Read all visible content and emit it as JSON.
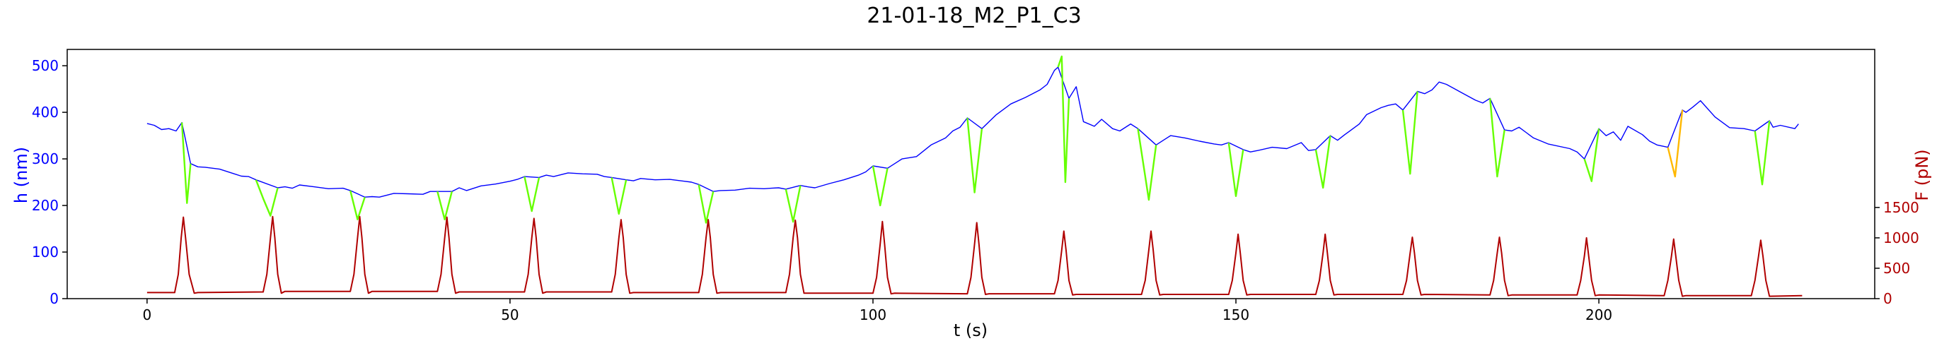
{
  "chart_data": {
    "type": "line",
    "title": "21-01-18_M2_P1_C3",
    "xlabel": "t (s)",
    "ylabel": "h (nm)",
    "y2label": "F (pN)",
    "xlim": [
      -11,
      238
    ],
    "ylim": [
      0,
      535
    ],
    "y2lim": [
      0,
      4100
    ],
    "xticks": [
      0,
      50,
      100,
      150,
      200
    ],
    "yticks": [
      0,
      100,
      200,
      300,
      400,
      500
    ],
    "y2ticks": [
      0,
      500,
      1000,
      1500
    ],
    "grid": false,
    "colors": {
      "height_relax": "#0000ff",
      "height_compress": "#66ff00",
      "height_compress_alt": "#ffb800",
      "force": "#b00000",
      "left_axis_text": "#0000ff",
      "right_axis_text": "#b00000",
      "frame": "#000000"
    },
    "series": [
      {
        "role": "height-relaxation",
        "axis": "left",
        "x": [
          0,
          1,
          2,
          3,
          4,
          4.8,
          6,
          7,
          8,
          10,
          12,
          13,
          14,
          15,
          18,
          19,
          20,
          21,
          23,
          25,
          27,
          28,
          30,
          31,
          32,
          34,
          36,
          38,
          39,
          40,
          42,
          43,
          44,
          46,
          48,
          50,
          51,
          52,
          54,
          55,
          56,
          58,
          60,
          62,
          63,
          64,
          66,
          67,
          68,
          70,
          72,
          74,
          75,
          76,
          78,
          79,
          81,
          83,
          85,
          86,
          87,
          88,
          90,
          91,
          92,
          94,
          96,
          98,
          99,
          100,
          102,
          103,
          104,
          106,
          108,
          110,
          111,
          112,
          113,
          115,
          116,
          117,
          119,
          121,
          123,
          124,
          125,
          125.5,
          127,
          128,
          129,
          130.5,
          131.5,
          133,
          134,
          135.5,
          136.5,
          139,
          140,
          141,
          143,
          145,
          147,
          148,
          149,
          151,
          152,
          153,
          155,
          157,
          159,
          160,
          161,
          163,
          164,
          165,
          167,
          168,
          170,
          171,
          172,
          173,
          175,
          176,
          177,
          178,
          179,
          181,
          183,
          184,
          185,
          187,
          188,
          189,
          191,
          193,
          196,
          197,
          198,
          200,
          201,
          202,
          203,
          204,
          206,
          207,
          208,
          209.5,
          211.5,
          212,
          213,
          214,
          216,
          218,
          220,
          221.5,
          223.5,
          224,
          225,
          227,
          227.5
        ],
        "y": [
          376,
          372,
          363,
          365,
          360,
          378,
          290,
          283,
          282,
          278,
          268,
          263,
          262,
          255,
          238,
          240,
          237,
          244,
          240,
          236,
          237,
          232,
          218,
          219,
          218,
          226,
          225,
          224,
          230,
          230,
          230,
          238,
          232,
          242,
          246,
          252,
          256,
          262,
          260,
          265,
          262,
          270,
          268,
          267,
          262,
          260,
          255,
          253,
          258,
          255,
          256,
          252,
          250,
          245,
          230,
          232,
          233,
          237,
          236,
          237,
          238,
          235,
          243,
          240,
          238,
          247,
          255,
          265,
          272,
          285,
          280,
          290,
          300,
          305,
          330,
          345,
          360,
          368,
          388,
          365,
          380,
          395,
          418,
          432,
          448,
          460,
          490,
          497,
          430,
          455,
          380,
          370,
          385,
          365,
          360,
          375,
          365,
          330,
          340,
          350,
          345,
          338,
          332,
          330,
          335,
          320,
          315,
          318,
          325,
          322,
          335,
          318,
          320,
          350,
          340,
          352,
          375,
          395,
          410,
          415,
          418,
          405,
          445,
          440,
          448,
          465,
          460,
          443,
          426,
          420,
          430,
          362,
          360,
          368,
          345,
          332,
          322,
          315,
          300,
          365,
          350,
          358,
          340,
          370,
          352,
          338,
          330,
          325,
          405,
          400,
          412,
          425,
          390,
          367,
          365,
          360,
          382,
          368,
          372,
          365,
          375
        ]
      },
      {
        "role": "height-compression",
        "axis": "left",
        "segments": [
          {
            "x": [
              4.8,
              5.5,
              6
            ],
            "y": [
              378,
              205,
              290
            ]
          },
          {
            "x": [
              15,
              16,
              17,
              18
            ],
            "y": [
              255,
              215,
              178,
              238
            ]
          },
          {
            "x": [
              28,
              29,
              30
            ],
            "y": [
              232,
              170,
              218
            ]
          },
          {
            "x": [
              40,
              41,
              42
            ],
            "y": [
              230,
              170,
              230
            ]
          },
          {
            "x": [
              52,
              53,
              54
            ],
            "y": [
              262,
              188,
              260
            ]
          },
          {
            "x": [
              64,
              65,
              66
            ],
            "y": [
              260,
              182,
              255
            ]
          },
          {
            "x": [
              76,
              77,
              78
            ],
            "y": [
              245,
              163,
              230
            ]
          },
          {
            "x": [
              88,
              89,
              90
            ],
            "y": [
              235,
              165,
              243
            ]
          },
          {
            "x": [
              100,
              101,
              102
            ],
            "y": [
              285,
              200,
              280
            ]
          },
          {
            "x": [
              113,
              114,
              115
            ],
            "y": [
              388,
              228,
              365
            ]
          },
          {
            "x": [
              125.5,
              126,
              126.5,
              127
            ],
            "y": [
              497,
              520,
              250,
              430
            ]
          },
          {
            "x": [
              136.5,
              138,
              139
            ],
            "y": [
              365,
              212,
              330
            ]
          },
          {
            "x": [
              149,
              150,
              151
            ],
            "y": [
              335,
              220,
              320
            ]
          },
          {
            "x": [
              161,
              162,
              163
            ],
            "y": [
              320,
              238,
              350
            ]
          },
          {
            "x": [
              173,
              174,
              175
            ],
            "y": [
              405,
              268,
              445
            ]
          },
          {
            "x": [
              185,
              186,
              187
            ],
            "y": [
              430,
              262,
              362
            ]
          },
          {
            "x": [
              198,
              199,
              200
            ],
            "y": [
              300,
              252,
              365
            ]
          },
          {
            "x": [
              221.5,
              222.5,
              223.5
            ],
            "y": [
              360,
              245,
              382
            ]
          }
        ]
      },
      {
        "role": "height-compression-alt",
        "axis": "right-color-alt",
        "segments": [
          {
            "x": [
              209.5,
              210.5,
              211.5
            ],
            "y": [
              325,
              262,
              405
            ]
          }
        ]
      },
      {
        "role": "force",
        "axis": "right",
        "x": [
          0,
          3.8,
          4.3,
          4.7,
          5,
          5.3,
          5.8,
          6.5,
          7,
          16,
          16.5,
          17,
          17.3,
          17.6,
          18,
          18.5,
          19,
          28,
          28.5,
          29,
          29.3,
          29.6,
          30,
          30.5,
          31,
          40,
          40.5,
          41,
          41.3,
          41.6,
          42,
          42.5,
          43,
          52,
          52.5,
          53,
          53.3,
          53.6,
          54,
          54.5,
          55,
          64,
          64.5,
          65,
          65.3,
          65.6,
          66,
          66.5,
          67,
          76,
          76.5,
          77,
          77.3,
          77.6,
          78,
          78.5,
          79,
          88,
          88.5,
          89,
          89.3,
          89.6,
          90,
          90.5,
          91,
          100,
          100.5,
          101,
          101.3,
          101.6,
          102,
          102.5,
          103,
          113,
          113.5,
          114,
          114.3,
          114.6,
          115,
          115.5,
          116,
          125,
          125.5,
          126,
          126.3,
          126.6,
          127,
          127.5,
          128,
          137,
          137.5,
          138,
          138.3,
          138.6,
          139,
          139.5,
          140,
          149,
          149.5,
          150,
          150.3,
          150.6,
          151,
          151.5,
          152,
          161,
          161.5,
          162,
          162.3,
          162.6,
          163,
          163.5,
          164,
          173,
          173.5,
          174,
          174.3,
          174.6,
          175,
          175.5,
          176,
          185,
          185.5,
          186,
          186.3,
          186.6,
          187,
          187.5,
          188,
          197,
          197.5,
          198,
          198.3,
          198.6,
          199,
          199.5,
          200,
          209,
          209.5,
          210,
          210.3,
          210.6,
          211,
          211.5,
          212,
          221,
          221.5,
          222,
          222.3,
          222.6,
          223,
          223.5,
          228
        ],
        "y": [
          100,
          100,
          400,
          1000,
          1340,
          1000,
          400,
          90,
          100,
          110,
          400,
          1000,
          1350,
          1000,
          400,
          90,
          120,
          120,
          400,
          1000,
          1350,
          1000,
          400,
          90,
          120,
          120,
          400,
          1000,
          1340,
          1000,
          400,
          90,
          110,
          110,
          400,
          1000,
          1320,
          1000,
          400,
          90,
          110,
          110,
          400,
          1000,
          1300,
          1000,
          400,
          90,
          100,
          100,
          400,
          1000,
          1300,
          1000,
          400,
          90,
          100,
          100,
          400,
          1000,
          1290,
          1000,
          400,
          90,
          90,
          90,
          350,
          900,
          1270,
          900,
          350,
          80,
          90,
          80,
          350,
          900,
          1250,
          900,
          350,
          70,
          80,
          80,
          300,
          800,
          1110,
          800,
          300,
          60,
          70,
          70,
          300,
          800,
          1110,
          800,
          300,
          60,
          70,
          70,
          300,
          750,
          1060,
          750,
          300,
          60,
          70,
          70,
          300,
          750,
          1060,
          750,
          300,
          60,
          70,
          70,
          300,
          750,
          1010,
          750,
          300,
          60,
          70,
          60,
          300,
          750,
          1010,
          750,
          300,
          50,
          60,
          60,
          300,
          700,
          1000,
          700,
          300,
          50,
          60,
          50,
          300,
          700,
          980,
          700,
          300,
          40,
          50,
          50,
          300,
          700,
          960,
          700,
          300,
          40,
          50
        ]
      }
    ]
  }
}
